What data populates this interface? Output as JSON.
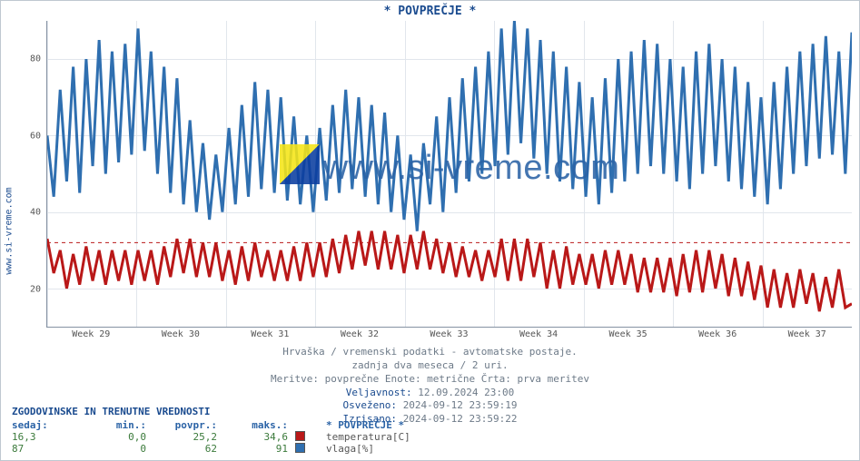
{
  "title": "* POVPREČJE *",
  "site_label": "www.si-vreme.com",
  "watermark_text": "www.si-vreme.com",
  "chart": {
    "type": "line",
    "background_color": "#ffffff",
    "grid_color": "#e1e6ec",
    "axis_color": "#8592a3",
    "y": {
      "min": 10,
      "max": 90,
      "ticks": [
        20,
        40,
        60,
        80
      ],
      "fontsize": 10
    },
    "x": {
      "labels": [
        "Week 29",
        "Week 30",
        "Week 31",
        "Week 32",
        "Week 33",
        "Week 34",
        "Week 35",
        "Week 36",
        "Week 37"
      ],
      "fontsize": 10
    },
    "series": [
      {
        "name": "temperatura[C]",
        "color": "#b91818",
        "line_width": 1,
        "dash_ref": 32,
        "values": [
          33,
          24,
          30,
          20,
          29,
          21,
          31,
          22,
          30,
          21,
          30,
          22,
          30,
          21,
          30,
          22,
          30,
          21,
          31,
          23,
          33,
          24,
          33,
          23,
          32,
          23,
          32,
          22,
          30,
          21,
          31,
          22,
          32,
          23,
          30,
          22,
          30,
          22,
          31,
          22,
          32,
          23,
          32,
          23,
          33,
          24,
          34,
          25,
          35,
          26,
          35,
          25,
          35,
          25,
          34,
          24,
          34,
          25,
          35,
          25,
          33,
          24,
          32,
          23,
          31,
          23,
          30,
          22,
          30,
          23,
          33,
          22,
          33,
          22,
          33,
          23,
          32,
          20,
          30,
          20,
          31,
          21,
          29,
          21,
          29,
          20,
          30,
          21,
          30,
          21,
          29,
          19,
          28,
          19,
          28,
          19,
          28,
          18,
          29,
          19,
          30,
          19,
          30,
          20,
          29,
          18,
          28,
          18,
          27,
          17,
          26,
          15,
          25,
          15,
          24,
          15,
          25,
          16,
          24,
          14,
          23,
          15,
          25,
          15,
          16
        ]
      },
      {
        "name": "vlaga[%]",
        "color": "#2f6fb0",
        "line_width": 1,
        "values": [
          60,
          44,
          72,
          48,
          78,
          45,
          80,
          52,
          85,
          50,
          82,
          53,
          84,
          55,
          88,
          56,
          82,
          50,
          78,
          45,
          75,
          42,
          64,
          40,
          58,
          38,
          55,
          40,
          62,
          42,
          68,
          44,
          74,
          46,
          72,
          45,
          70,
          43,
          65,
          42,
          60,
          40,
          62,
          43,
          68,
          45,
          72,
          46,
          70,
          44,
          68,
          42,
          66,
          40,
          60,
          38,
          55,
          35,
          58,
          42,
          65,
          40,
          70,
          45,
          75,
          48,
          78,
          50,
          82,
          52,
          88,
          55,
          90,
          58,
          88,
          54,
          85,
          50,
          82,
          48,
          78,
          46,
          74,
          44,
          70,
          42,
          75,
          45,
          80,
          48,
          82,
          50,
          85,
          52,
          84,
          50,
          80,
          48,
          78,
          46,
          82,
          50,
          84,
          52,
          80,
          48,
          78,
          46,
          74,
          44,
          70,
          42,
          74,
          46,
          78,
          50,
          82,
          52,
          84,
          54,
          86,
          55,
          82,
          50,
          87
        ]
      }
    ]
  },
  "info": {
    "line1": "Hrvaška / vremenski podatki - avtomatske postaje.",
    "line2": "zadnja dva meseca / 2 uri.",
    "line3": "Meritve: povprečne  Enote: metrične  Črta: prva meritev",
    "line4_label": "Veljavnost:",
    "line4_value": "12.09.2024 23:00",
    "line5_label": "Osveženo:",
    "line5_value": "2024-09-12 23:59:19",
    "line6_label": "Izrisano:",
    "line6_value": "2024-09-12 23:59:22"
  },
  "stats": {
    "title": "ZGODOVINSKE IN TRENUTNE VREDNOSTI",
    "headers": {
      "now": "sedaj:",
      "min": "min.:",
      "avg": "povpr.:",
      "max": "maks.:"
    },
    "legend_title": "* POVPREČJE *",
    "rows": [
      {
        "now": "16,3",
        "min": "0,0",
        "avg": "25,2",
        "max": "34,6",
        "swatch": "#b91818",
        "label": "temperatura[C]"
      },
      {
        "now": "87",
        "min": "0",
        "avg": "62",
        "max": "91",
        "swatch": "#2f6fb0",
        "label": "vlaga[%]"
      }
    ]
  }
}
